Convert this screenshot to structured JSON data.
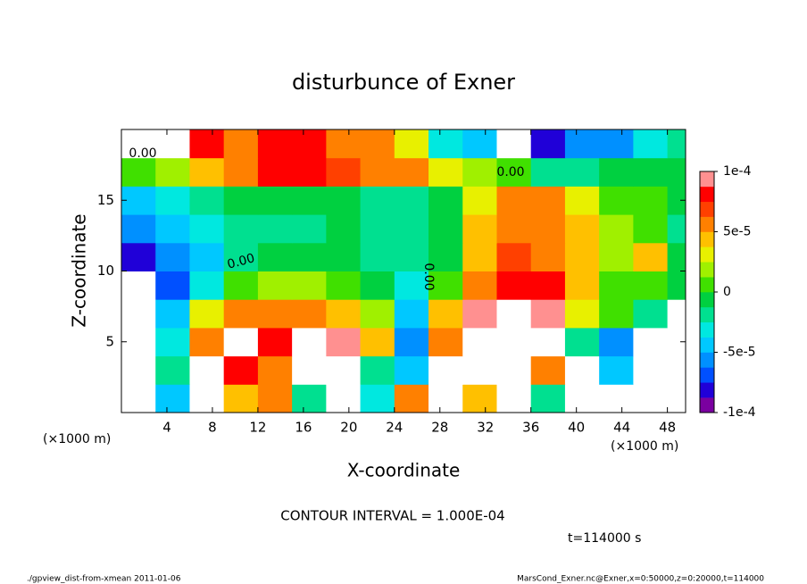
{
  "chart_data": {
    "type": "contourf",
    "title": "disturbunce of Exner",
    "xlabel": "X-coordinate",
    "ylabel": "Z-coordinate",
    "xunit": "(×1000 m)",
    "yunit": "(×1000 m)",
    "xlim": [
      0,
      49.6
    ],
    "ylim": [
      0,
      20
    ],
    "xticks": [
      4,
      8,
      12,
      16,
      20,
      24,
      28,
      32,
      36,
      40,
      44,
      48
    ],
    "yticks": [
      5,
      10,
      15
    ],
    "clim": [
      -0.0001,
      0.0001
    ],
    "cticks": [
      {
        "value": 0.0001,
        "label": "1e-4"
      },
      {
        "value": 5e-05,
        "label": "5e-5"
      },
      0,
      {
        "value": -5e-05,
        "label": "-5e-5"
      },
      {
        "value": -0.0001,
        "label": "-1e-4"
      }
    ],
    "colors": [
      "#7a00a0",
      "#2000d8",
      "#0050ff",
      "#0090ff",
      "#00c8ff",
      "#00e8e0",
      "#00e090",
      "#00d040",
      "#40e000",
      "#a0f000",
      "#e8f000",
      "#ffc000",
      "#ff8000",
      "#ff4000",
      "#ff0000",
      "#ff9090"
    ],
    "x": [
      1.5,
      4.5,
      7.5,
      10.5,
      13.5,
      16.5,
      19.5,
      22.5,
      25.5,
      28.5,
      31.5,
      34.5,
      37.5,
      40.5,
      43.5,
      46.5,
      49.5
    ],
    "z": [
      1,
      3,
      5,
      7,
      9,
      11,
      13,
      15,
      17,
      19
    ],
    "values": [
      [
        0.0002,
        -4e-05,
        0.0002,
        4e-05,
        6e-05,
        -2e-05,
        0.0002,
        -3e-05,
        6e-05,
        0.0002,
        4e-05,
        0.0002,
        -2e-05,
        0.0002,
        0.0002,
        0.0002,
        0.0002
      ],
      [
        0.0002,
        -2e-05,
        0.0002,
        8e-05,
        6e-05,
        0.0002,
        0.0002,
        -2e-05,
        -4e-05,
        0.0002,
        0.0002,
        0.0002,
        5e-05,
        0.0002,
        -4e-05,
        0.0002,
        0.0002
      ],
      [
        0.0002,
        -3e-05,
        6e-05,
        0.0002,
        8e-05,
        0.0002,
        9e-05,
        4e-05,
        -6e-05,
        6e-05,
        0.0002,
        0.0002,
        0.0002,
        -2e-05,
        -6e-05,
        0.0002,
        0.0002
      ],
      [
        0.0002,
        -5e-05,
        3e-05,
        6e-05,
        5e-05,
        5e-05,
        4e-05,
        2e-05,
        -4e-05,
        4e-05,
        9e-05,
        0.0002,
        9e-05,
        3e-05,
        0,
        -2e-05,
        0.0002
      ],
      [
        0.0002,
        -7e-05,
        -3e-05,
        1e-05,
        2e-05,
        2e-05,
        1e-05,
        -1e-05,
        -3e-05,
        1e-05,
        6e-05,
        8e-05,
        8e-05,
        4e-05,
        1e-05,
        1e-05,
        -1e-05
      ],
      [
        -8e-05,
        -6e-05,
        -4e-05,
        -2e-05,
        -1e-05,
        -1e-05,
        -1e-05,
        -2e-05,
        -2e-05,
        -1e-05,
        4e-05,
        7e-05,
        6e-05,
        4e-05,
        2e-05,
        4e-05,
        -1e-05
      ],
      [
        -6e-05,
        -4e-05,
        -3e-05,
        -2e-05,
        -2e-05,
        -2e-05,
        -1e-05,
        -2e-05,
        -2e-05,
        -1e-05,
        4e-05,
        6e-05,
        6e-05,
        4e-05,
        2e-05,
        1e-05,
        -2e-05
      ],
      [
        -4e-05,
        -3e-05,
        -2e-05,
        -1e-05,
        -1e-05,
        -1e-05,
        -1e-05,
        -2e-05,
        -2e-05,
        -1e-05,
        3e-05,
        5e-05,
        5e-05,
        3e-05,
        1e-05,
        0,
        -1e-05
      ],
      [
        1e-05,
        2e-05,
        4e-05,
        6e-05,
        8e-05,
        8e-05,
        7e-05,
        6e-05,
        6e-05,
        3e-05,
        2e-05,
        1e-05,
        -2e-05,
        -2e-05,
        -1e-05,
        -1e-05,
        -1e-05
      ],
      [
        0.0002,
        0.0002,
        8e-05,
        5e-05,
        8e-05,
        8e-05,
        6e-05,
        5e-05,
        3e-05,
        -3e-05,
        -5e-05,
        0.0002,
        -8e-05,
        -6e-05,
        -6e-05,
        -3e-05,
        -2e-05
      ]
    ],
    "contour_labels": [
      "0.00",
      "0.00",
      "0.00",
      "0.00"
    ],
    "note": "CONTOUR INTERVAL = 1.000E-04",
    "time": "t=114000 s",
    "footer_left": "./gpview_dist-from-xmean  2011-01-06",
    "footer_right": "MarsCond_Exner.nc@Exner,x=0:50000,z=0:20000,t=114000"
  }
}
